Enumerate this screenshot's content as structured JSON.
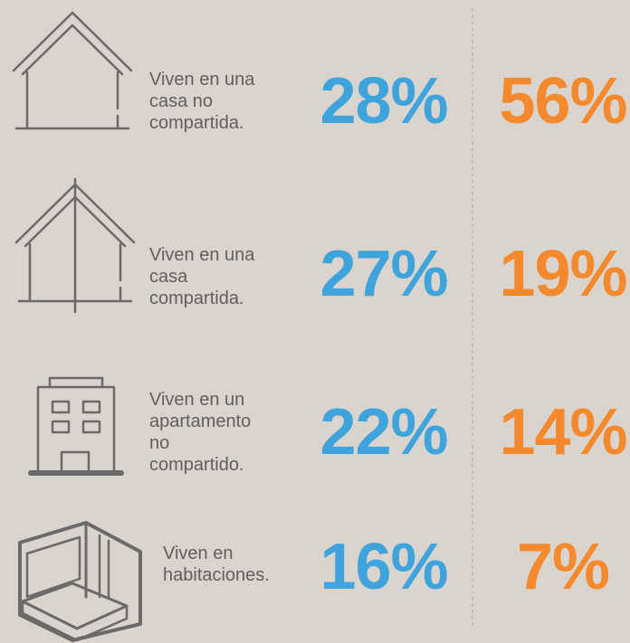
{
  "rows": [
    {
      "label": [
        "Viven en una",
        "casa no",
        "compartida."
      ],
      "left": "28%",
      "right": "56%"
    },
    {
      "label": [
        "Viven en una",
        "casa",
        "compartida."
      ],
      "left": "27%",
      "right": "19%"
    },
    {
      "label": [
        "Viven en un",
        "apartamento",
        "no",
        "compartido."
      ],
      "left": "22%",
      "right": "14%"
    },
    {
      "label": [
        "Viven en",
        "habitaciones."
      ],
      "left": "16%",
      "right": "7%"
    }
  ]
}
